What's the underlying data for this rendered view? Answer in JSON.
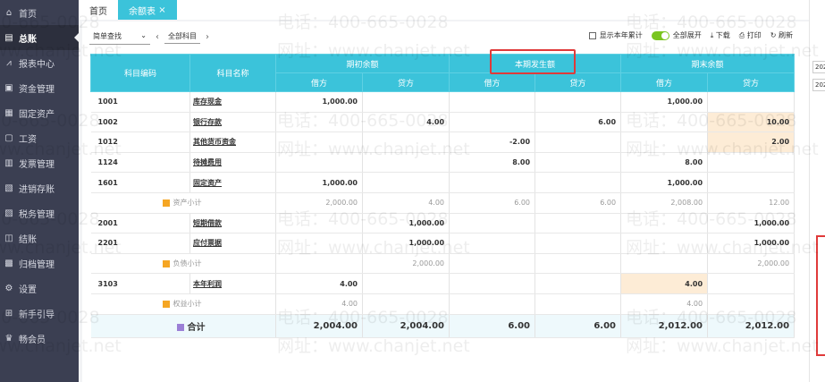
{
  "sidebar": {
    "items": [
      {
        "label": "首页",
        "icon": "home-icon"
      },
      {
        "label": "总账",
        "icon": "ledger-icon",
        "active": true
      },
      {
        "label": "报表中心",
        "icon": "chart-icon"
      },
      {
        "label": "资金管理",
        "icon": "wallet-icon"
      },
      {
        "label": "固定资产",
        "icon": "asset-icon"
      },
      {
        "label": "工资",
        "icon": "salary-icon"
      },
      {
        "label": "发票管理",
        "icon": "invoice-icon"
      },
      {
        "label": "进销存账",
        "icon": "inventory-icon"
      },
      {
        "label": "税务管理",
        "icon": "tax-icon"
      },
      {
        "label": "结账",
        "icon": "close-books-icon"
      },
      {
        "label": "归档管理",
        "icon": "archive-icon"
      },
      {
        "label": "设置",
        "icon": "gear-icon"
      },
      {
        "label": "新手引导",
        "icon": "guide-icon"
      },
      {
        "label": "畅会员",
        "icon": "member-icon"
      }
    ]
  },
  "tabs": [
    {
      "label": "首页"
    },
    {
      "label": "余额表",
      "close": "×",
      "active": true
    }
  ],
  "toolbar": {
    "simple_search": "简单查找",
    "all_subjects": "全部科目",
    "show_year": "显示本年累计",
    "expand_all": "全部展开",
    "download": "下载",
    "print": "打印",
    "refresh": "刷新"
  },
  "table": {
    "headers": {
      "code": "科目编码",
      "name": "科目名称",
      "opening": "期初余额",
      "period": "本期发生额",
      "closing": "期末余额",
      "debit": "借方",
      "credit": "贷方"
    },
    "rows": [
      {
        "type": "item",
        "code": "1001",
        "name": "库存现金",
        "v": [
          "1,000.00",
          "",
          "",
          "",
          "1,000.00",
          ""
        ]
      },
      {
        "type": "item",
        "code": "1002",
        "name": "银行存款",
        "v": [
          "",
          "4.00",
          "",
          "6.00",
          "",
          "10.00"
        ],
        "hl": [
          5
        ]
      },
      {
        "type": "item",
        "code": "1012",
        "name": "其他货币资金",
        "v": [
          "",
          "",
          "-2.00",
          "",
          "",
          "2.00"
        ],
        "hl": [
          5
        ]
      },
      {
        "type": "item",
        "code": "1124",
        "name": "待摊费用",
        "v": [
          "",
          "",
          "8.00",
          "",
          "8.00",
          ""
        ]
      },
      {
        "type": "item",
        "code": "1601",
        "name": "固定资产",
        "v": [
          "1,000.00",
          "",
          "",
          "",
          "1,000.00",
          ""
        ]
      },
      {
        "type": "sub",
        "name": "资产小计",
        "v": [
          "2,000.00",
          "4.00",
          "6.00",
          "6.00",
          "2,008.00",
          "12.00"
        ]
      },
      {
        "type": "item",
        "code": "2001",
        "name": "短期借款",
        "v": [
          "",
          "1,000.00",
          "",
          "",
          "",
          "1,000.00"
        ]
      },
      {
        "type": "item",
        "code": "2201",
        "name": "应付票据",
        "v": [
          "",
          "1,000.00",
          "",
          "",
          "",
          "1,000.00"
        ]
      },
      {
        "type": "sub",
        "name": "负债小计",
        "v": [
          "",
          "2,000.00",
          "",
          "",
          "",
          "2,000.00"
        ]
      },
      {
        "type": "item",
        "code": "3103",
        "name": "本年利润",
        "v": [
          "4.00",
          "",
          "",
          "",
          "4.00",
          ""
        ],
        "hl": [
          4
        ]
      },
      {
        "type": "sub",
        "name": "权益小计",
        "v": [
          "4.00",
          "",
          "",
          "",
          "4.00",
          ""
        ]
      },
      {
        "type": "total",
        "name": "合计",
        "v": [
          "2,004.00",
          "2,004.00",
          "6.00",
          "6.00",
          "2,012.00",
          "2,012.00"
        ]
      }
    ]
  },
  "right_panel": {
    "date1": "202",
    "date2": "202"
  },
  "watermark": {
    "phone": "电话：400-665-0028",
    "site": "网址：www.chanjet.net"
  },
  "colors": {
    "accent": "#3bc3da",
    "highlight": "#fdecd6",
    "annotation": "#e03a3a",
    "toggle": "#7ac520"
  }
}
